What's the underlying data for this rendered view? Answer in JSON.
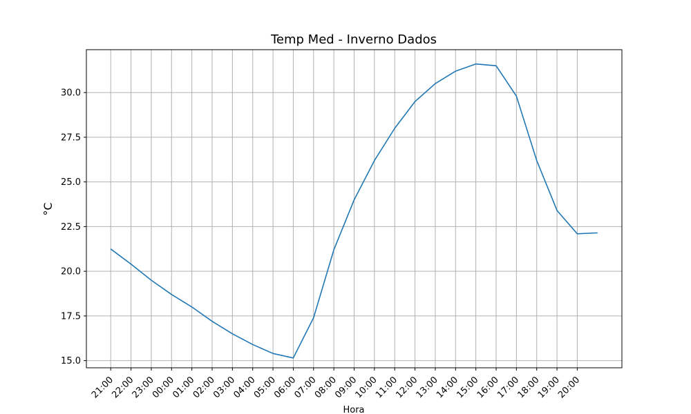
{
  "chart_data": {
    "type": "line",
    "title": "Temp Med - Inverno Dados",
    "xlabel": "Hora",
    "ylabel": "°C",
    "categories": [
      "21:00",
      "22:00",
      "23:00",
      "00:00",
      "01:00",
      "02:00",
      "03:00",
      "04:00",
      "05:00",
      "06:00",
      "07:00",
      "08:00",
      "09:00",
      "10:00",
      "11:00",
      "12:00",
      "13:00",
      "14:00",
      "15:00",
      "16:00",
      "17:00",
      "18:00",
      "19:00",
      "20:00"
    ],
    "x_ticks": [
      "21:00",
      "22:00",
      "23:00",
      "00:00",
      "01:00",
      "02:00",
      "03:00",
      "04:00",
      "05:00",
      "06:00",
      "07:00",
      "08:00",
      "09:00",
      "10:00",
      "11:00",
      "12:00",
      "13:00",
      "14:00",
      "15:00",
      "16:00",
      "17:00",
      "18:00",
      "19:00",
      "20:00"
    ],
    "x_values": [
      0,
      1,
      2,
      3,
      4,
      5,
      6,
      7,
      8,
      9,
      10,
      11,
      12,
      13,
      14,
      15,
      16,
      17,
      18,
      19,
      20,
      21,
      22,
      23,
      24
    ],
    "y_values": [
      21.25,
      20.4,
      19.5,
      18.7,
      18.0,
      17.2,
      16.5,
      15.9,
      15.4,
      15.15,
      17.4,
      21.2,
      24.0,
      26.2,
      28.0,
      29.5,
      30.5,
      31.2,
      31.6,
      31.5,
      29.8,
      26.2,
      23.4,
      22.1,
      22.15
    ],
    "ylim": [
      14.6,
      32.4
    ],
    "xlim": [
      -1.2,
      25.2
    ],
    "y_ticks": [
      15.0,
      17.5,
      20.0,
      22.5,
      25.0,
      27.5,
      30.0
    ],
    "y_tick_labels": [
      "15.0",
      "17.5",
      "20.0",
      "22.5",
      "25.0",
      "27.5",
      "30.0"
    ],
    "grid": true,
    "line_color": "#1f77b4",
    "grid_color": "#b0b0b0"
  }
}
